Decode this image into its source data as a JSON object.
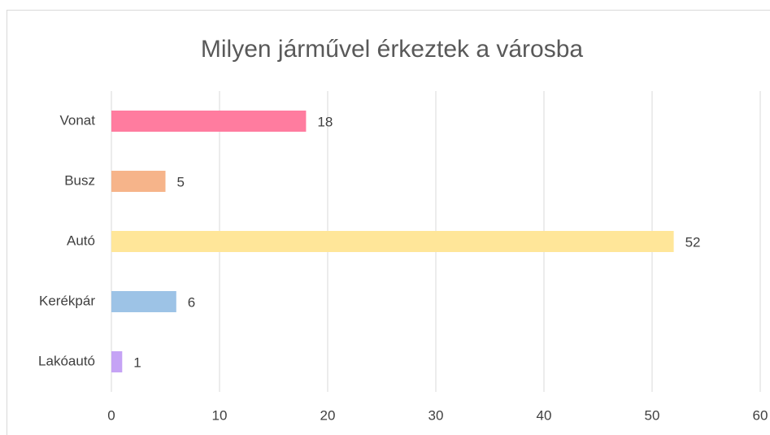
{
  "chart_data": {
    "type": "bar",
    "orientation": "horizontal",
    "title": "Milyen járművel érkeztek a városba",
    "categories": [
      "Vonat",
      "Busz",
      "Autó",
      "Kerékpár",
      "Lakóautó"
    ],
    "values": [
      18,
      5,
      52,
      6,
      1
    ],
    "colors": [
      "#ff7c9f",
      "#f6b48a",
      "#ffe699",
      "#9dc3e6",
      "#c5a3f5"
    ],
    "xlim": [
      0,
      60
    ],
    "xticks": [
      0,
      10,
      20,
      30,
      40,
      50,
      60
    ],
    "grid": true
  }
}
